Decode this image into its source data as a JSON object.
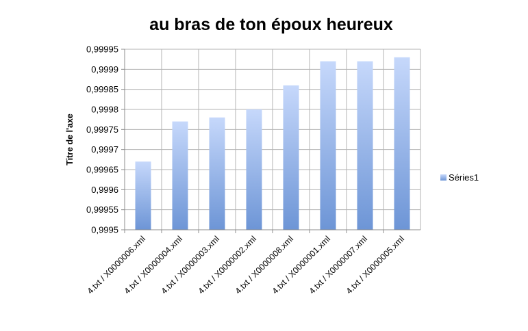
{
  "chart_data": {
    "type": "bar",
    "title": "au bras de ton époux heureux",
    "xlabel": "",
    "ylabel": "Titre de l'axe",
    "categories": [
      "4.txt / X0000006.xml",
      "4.txt / X0000004.xml",
      "4.txt / X0000003.xml",
      "4.txt / X0000002.xml",
      "4.txt / X0000008.xml",
      "4.txt / X0000001.xml",
      "4.txt / X0000007.xml",
      "4.txt / X0000005.xml"
    ],
    "series": [
      {
        "name": "Séries1",
        "values": [
          0.99967,
          0.99977,
          0.99978,
          0.9998,
          0.99986,
          0.99992,
          0.99992,
          0.99993
        ]
      }
    ],
    "ylim": [
      0.9995,
      0.99995
    ],
    "yticks": [
      "0,9995",
      "0,99955",
      "0,9996",
      "0,99965",
      "0,9997",
      "0,99975",
      "0,9998",
      "0,99985",
      "0,9999",
      "0,99995"
    ],
    "grid": true,
    "legend_position": "right",
    "colors": {
      "bar_top": "#c6d8fb",
      "bar_bottom": "#6d95d6",
      "grid": "#b3b3b3",
      "axis": "#8c8c8c"
    }
  }
}
